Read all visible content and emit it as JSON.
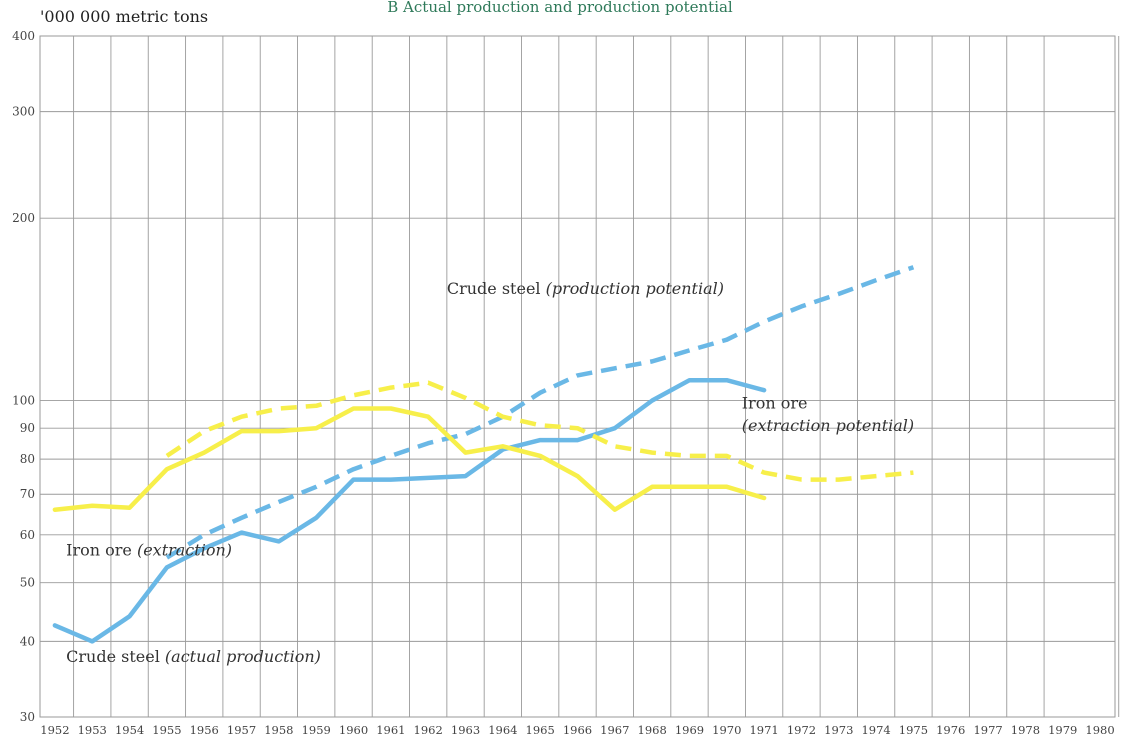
{
  "chart_data": {
    "type": "line",
    "title": "B Actual production and production potential",
    "ylabel": "'000 000 metric tons",
    "y_scale": "log",
    "ylim": [
      30,
      400
    ],
    "y_ticks": [
      "30",
      "40",
      "50",
      "60",
      "70",
      "80",
      "90",
      "100",
      "200",
      "300",
      "400"
    ],
    "y_tick_values": [
      30,
      40,
      50,
      60,
      70,
      80,
      90,
      100,
      200,
      300,
      400
    ],
    "x_ticks": [
      "1952",
      "1953",
      "1954",
      "1955",
      "1956",
      "1957",
      "1958",
      "1959",
      "1960",
      "1961",
      "1962",
      "1963",
      "1964",
      "1965",
      "1966",
      "1967",
      "1968",
      "1969",
      "1970",
      "1971",
      "1972",
      "1973",
      "1974",
      "1975",
      "1976",
      "1977",
      "1978",
      "1979",
      "1980"
    ],
    "grid": true,
    "legend": "none",
    "series": [
      {
        "style": "solid",
        "color": "#6ab8e6",
        "x": [
          1952,
          1953,
          1954,
          1955,
          1956,
          1957,
          1958,
          1959,
          1960,
          1961,
          1962,
          1963,
          1964,
          1965,
          1966,
          1967,
          1968,
          1969,
          1970,
          1971
        ],
        "values": [
          42.5,
          40,
          44,
          53,
          57,
          60.5,
          58.5,
          64,
          74,
          74,
          74.5,
          75,
          83,
          86,
          86,
          90,
          100,
          108,
          108,
          104
        ]
      },
      {
        "style": "dashed",
        "color": "#6ab8e6",
        "x": [
          1955,
          1956,
          1957,
          1958,
          1959,
          1960,
          1961,
          1962,
          1963,
          1964,
          1965,
          1966,
          1967,
          1968,
          1969,
          1970,
          1971,
          1972,
          1973,
          1974,
          1975
        ],
        "values": [
          55,
          60,
          64,
          68,
          72,
          77,
          81,
          85,
          88,
          94,
          103,
          110,
          113,
          116,
          121,
          126,
          135,
          143,
          150,
          158,
          166
        ]
      },
      {
        "style": "solid",
        "color": "#f7ef4a",
        "x": [
          1952,
          1953,
          1954,
          1955,
          1956,
          1957,
          1958,
          1959,
          1960,
          1961,
          1962,
          1963,
          1964,
          1965,
          1966,
          1967,
          1968,
          1969,
          1970,
          1971
        ],
        "values": [
          66,
          67,
          66.5,
          77,
          82,
          89,
          89,
          90,
          97,
          97,
          94,
          82,
          84,
          81,
          75,
          66,
          72,
          72,
          72,
          69
        ]
      },
      {
        "style": "dashed",
        "color": "#f7ef4a",
        "x": [
          1955,
          1956,
          1957,
          1958,
          1959,
          1960,
          1961,
          1962,
          1963,
          1964,
          1965,
          1966,
          1967,
          1968,
          1969,
          1970,
          1971,
          1972,
          1973,
          1974,
          1975
        ],
        "values": [
          81,
          89,
          94,
          97,
          98,
          102,
          105,
          107,
          101,
          94,
          91,
          90,
          84,
          82,
          81,
          81,
          76,
          74,
          74,
          75,
          76
        ]
      }
    ],
    "annotations": [
      {
        "id": "steel-potential",
        "text": "Crude steel ",
        "italic": "(production potential)",
        "x": 1962.5,
        "y": 150
      },
      {
        "id": "ore-potential-1",
        "text": "Iron ore",
        "italic": "",
        "x": 1970.4,
        "y": 97
      },
      {
        "id": "ore-potential-2",
        "text": "",
        "italic": "(extraction potential)",
        "x": 1970.4,
        "y": 89
      },
      {
        "id": "ore-extraction",
        "text": "Iron ore ",
        "italic": "(extraction)",
        "x": 1952.3,
        "y": 55.5
      },
      {
        "id": "steel-actual",
        "text": "Crude steel ",
        "italic": "(actual production)",
        "x": 1952.3,
        "y": 37
      }
    ]
  }
}
